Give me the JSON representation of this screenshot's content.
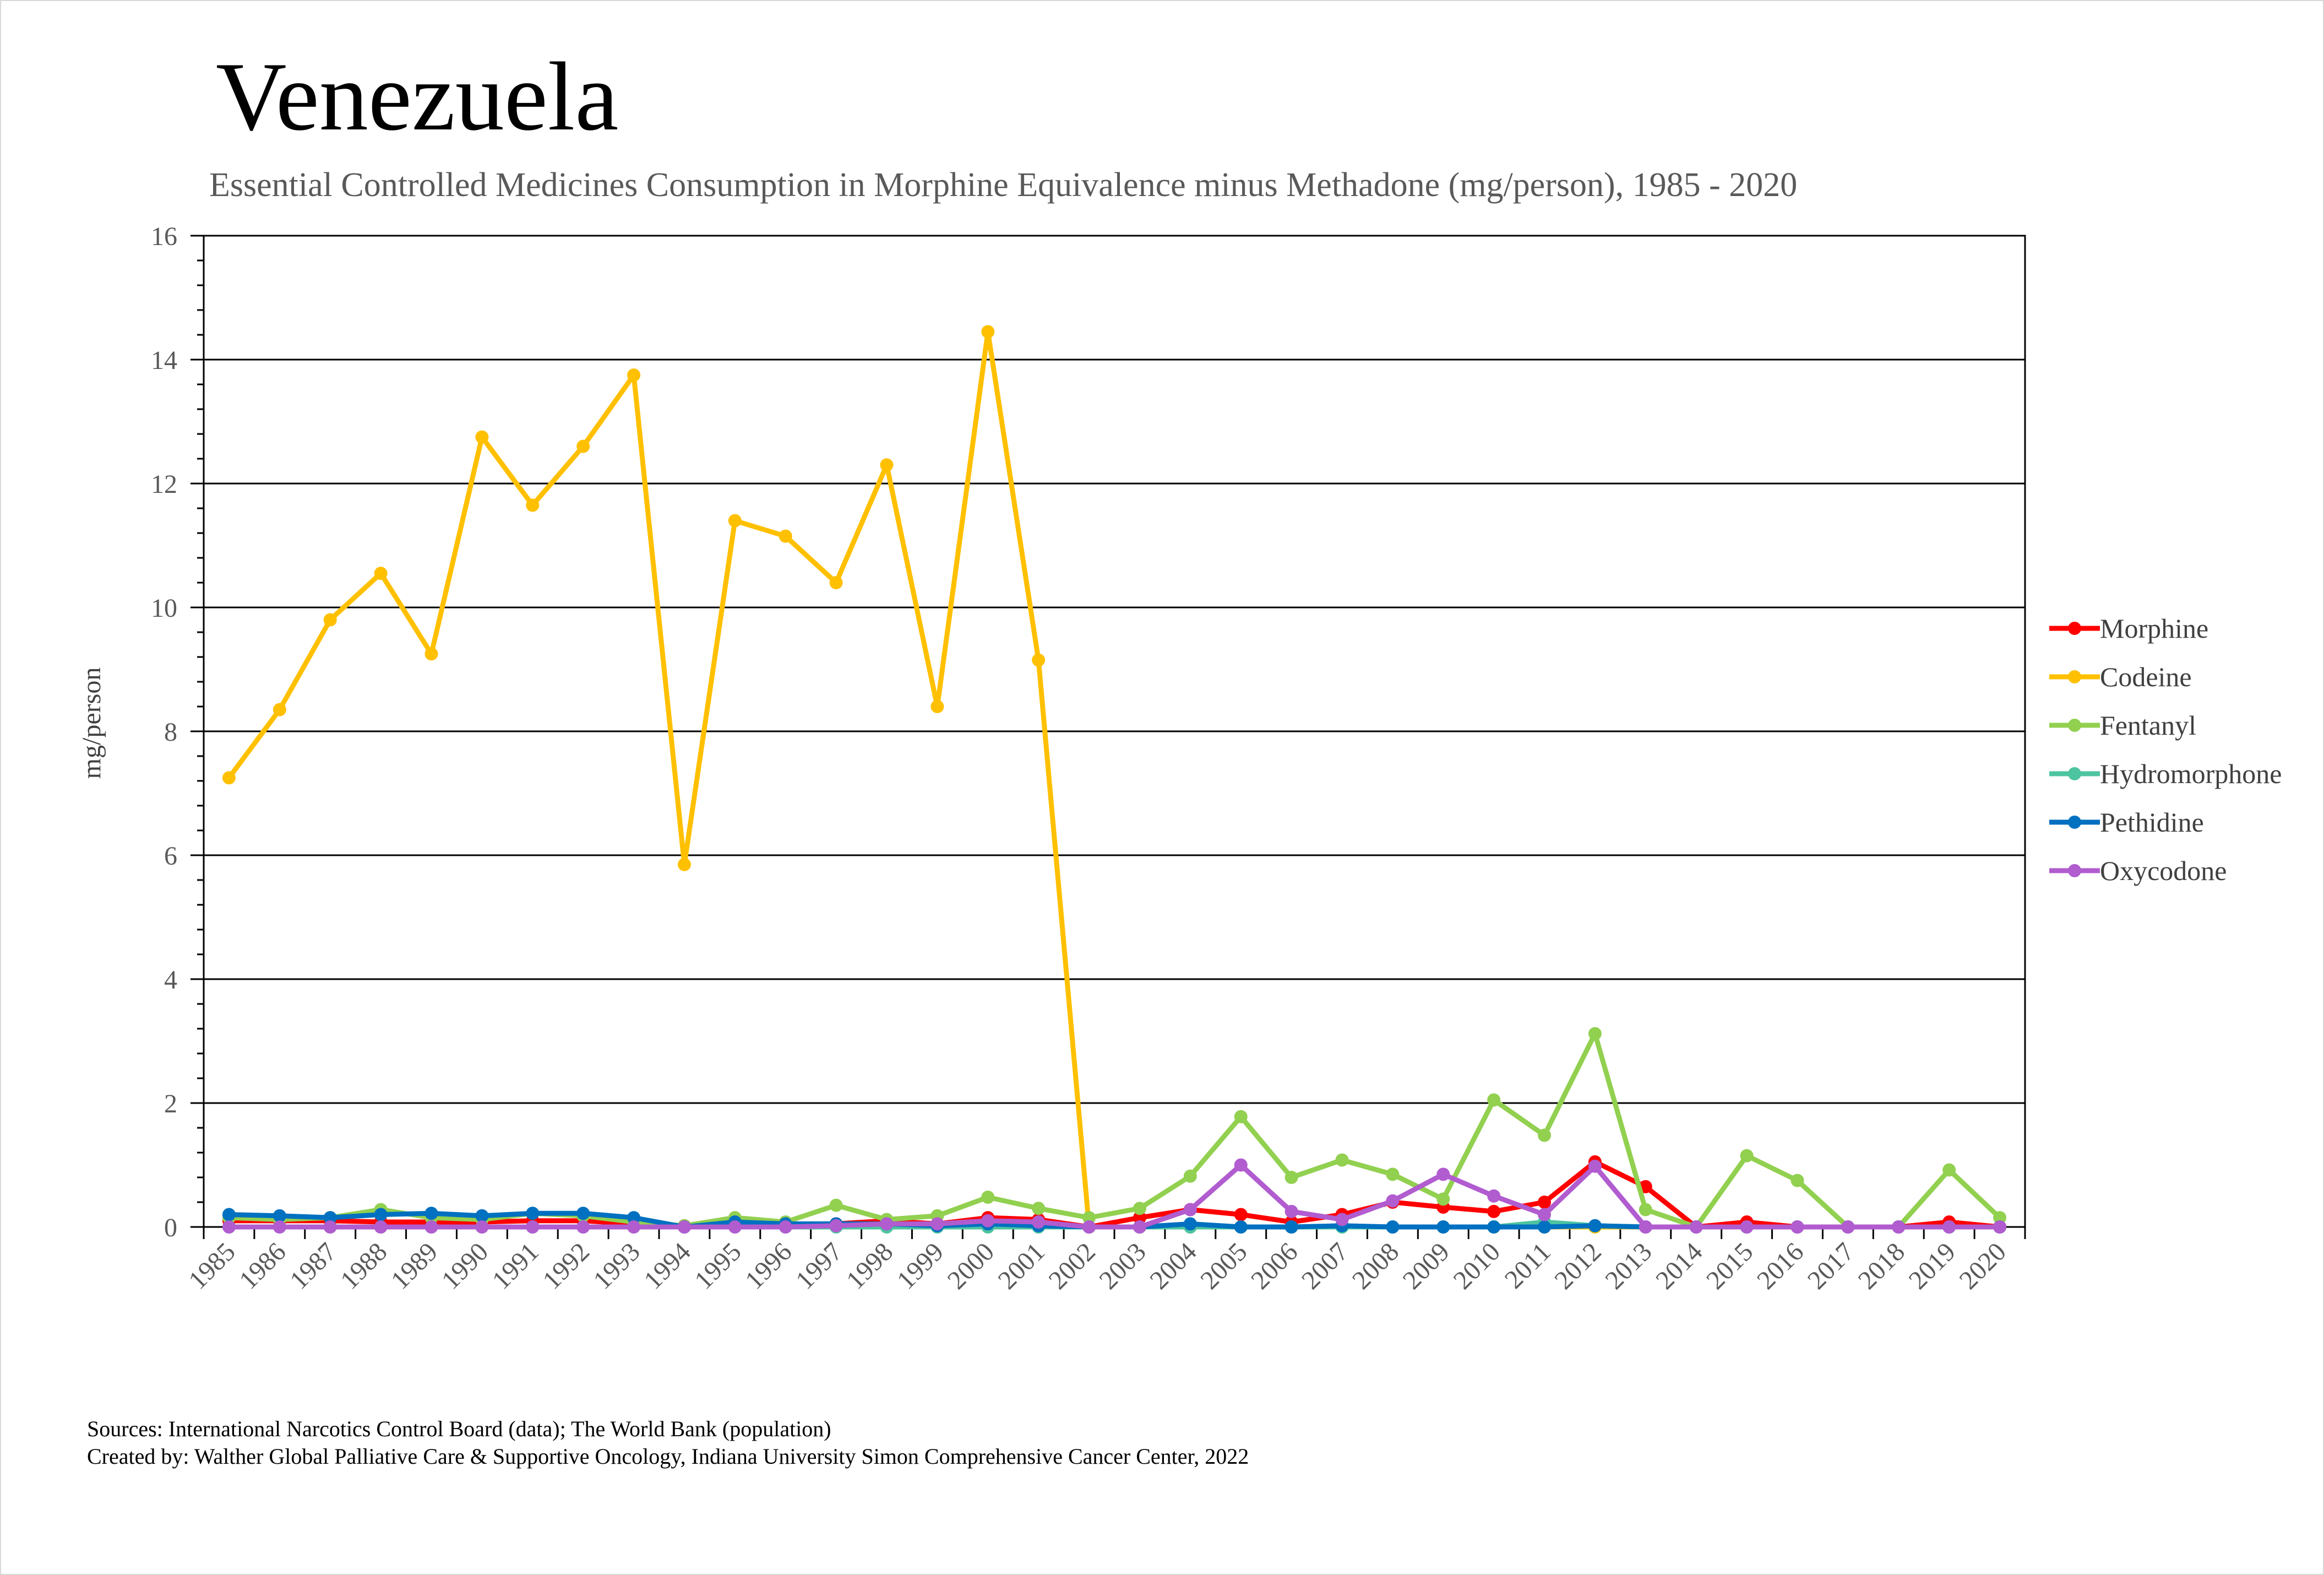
{
  "chart_data": {
    "type": "line",
    "title": "Venezuela",
    "subtitle": "Essential Controlled Medicines Consumption in Morphine Equivalence minus Methadone (mg/person), 1985 - 2020",
    "xlabel": "",
    "ylabel": "mg/person",
    "ylim": [
      0,
      16
    ],
    "yticks": [
      0,
      2,
      4,
      6,
      8,
      10,
      12,
      14,
      16
    ],
    "grid": true,
    "legend": "right",
    "categories": [
      "1985",
      "1986",
      "1987",
      "1988",
      "1989",
      "1990",
      "1991",
      "1992",
      "1993",
      "1994",
      "1995",
      "1996",
      "1997",
      "1998",
      "1999",
      "2000",
      "2001",
      "2002",
      "2003",
      "2004",
      "2005",
      "2006",
      "2007",
      "2008",
      "2009",
      "2010",
      "2011",
      "2012",
      "2013",
      "2014",
      "2015",
      "2016",
      "2017",
      "2018",
      "2019",
      "2020"
    ],
    "series": [
      {
        "name": "Morphine",
        "color": "#ff0000",
        "values": [
          0.1,
          0.1,
          0.1,
          0.08,
          0.08,
          0.08,
          0.1,
          0.1,
          0.05,
          0.02,
          0.05,
          0.03,
          0.05,
          0.1,
          0.05,
          0.15,
          0.12,
          0.0,
          0.15,
          0.28,
          0.2,
          0.08,
          0.2,
          0.4,
          0.32,
          0.25,
          0.4,
          1.05,
          0.65,
          0.0,
          0.08,
          0.0,
          0.0,
          0.0,
          0.08,
          0.0
        ]
      },
      {
        "name": "Codeine",
        "color": "#ffc000",
        "values": [
          7.25,
          8.35,
          9.8,
          10.55,
          9.25,
          12.75,
          11.65,
          12.6,
          13.75,
          5.85,
          11.4,
          11.15,
          10.4,
          12.3,
          8.4,
          14.45,
          9.15,
          0.0,
          0.0,
          0.0,
          0.0,
          0.0,
          0.0,
          0.0,
          0.0,
          0.0,
          0.0,
          0.0,
          0.0,
          0.0,
          0.0,
          0.0,
          0.0,
          0.0,
          0.0,
          0.0
        ]
      },
      {
        "name": "Fentanyl",
        "color": "#92d050",
        "values": [
          0.15,
          0.12,
          0.15,
          0.28,
          0.15,
          0.12,
          0.22,
          0.18,
          0.08,
          0.02,
          0.15,
          0.08,
          0.35,
          0.12,
          0.18,
          0.48,
          0.3,
          0.15,
          0.3,
          0.82,
          1.78,
          0.8,
          1.08,
          0.85,
          0.45,
          2.05,
          1.48,
          3.12,
          0.28,
          0.0,
          1.15,
          0.75,
          0.0,
          0.0,
          0.92,
          0.15
        ]
      },
      {
        "name": "Hydromorphone",
        "color": "#4dc4a0",
        "values": [
          0.0,
          0.0,
          0.0,
          0.0,
          0.0,
          0.0,
          0.0,
          0.0,
          0.0,
          0.0,
          0.0,
          0.0,
          0.0,
          0.0,
          0.0,
          0.0,
          0.0,
          0.0,
          0.0,
          0.0,
          0.0,
          0.0,
          0.0,
          0.0,
          0.0,
          0.0,
          0.08,
          0.02,
          0.0,
          0.0,
          0.0,
          0.0,
          0.0,
          0.0,
          0.0,
          0.0
        ]
      },
      {
        "name": "Pethidine",
        "color": "#0070c0",
        "values": [
          0.2,
          0.18,
          0.15,
          0.2,
          0.22,
          0.18,
          0.22,
          0.22,
          0.15,
          0.0,
          0.08,
          0.05,
          0.05,
          0.05,
          0.02,
          0.05,
          0.02,
          0.0,
          0.0,
          0.05,
          0.0,
          0.0,
          0.02,
          0.0,
          0.0,
          0.0,
          0.0,
          0.02,
          0.0,
          0.0,
          0.0,
          0.0,
          0.0,
          0.0,
          0.0,
          0.0
        ]
      },
      {
        "name": "Oxycodone",
        "color": "#b15ccf",
        "values": [
          0.0,
          0.0,
          0.0,
          0.0,
          0.0,
          0.0,
          0.0,
          0.0,
          0.0,
          0.0,
          0.0,
          0.0,
          0.02,
          0.05,
          0.05,
          0.1,
          0.08,
          0.0,
          0.0,
          0.28,
          1.0,
          0.25,
          0.12,
          0.42,
          0.85,
          0.5,
          0.2,
          0.98,
          0.0,
          0.0,
          0.0,
          0.0,
          0.0,
          0.0,
          0.0,
          0.0
        ]
      }
    ]
  },
  "footer": {
    "sources": "Sources: International Narcotics Control Board (data); The World Bank (population)",
    "created_by": "Created by: Walther Global Palliative Care & Supportive Oncology, Indiana University Simon Comprehensive Cancer Center, 2022"
  }
}
